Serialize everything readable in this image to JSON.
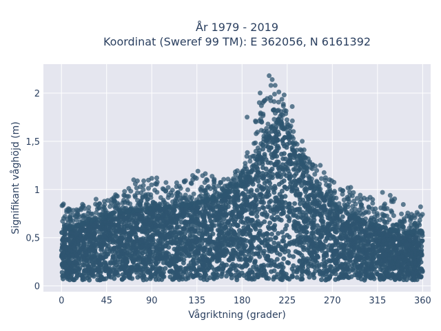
{
  "chart_data": {
    "type": "scatter",
    "title": "År 1979 - 2019",
    "subtitle": "Koordinat (Sweref 99 TM): E 362056, N 6161392",
    "xlabel": "Vågriktning (grader)",
    "ylabel": "Signifikant våghöjd (m)",
    "xlim": [
      -18,
      368
    ],
    "ylim": [
      -0.06,
      2.3
    ],
    "x_ticks": [
      0,
      45,
      90,
      135,
      180,
      225,
      270,
      315,
      360
    ],
    "x_tick_labels": [
      "0",
      "45",
      "90",
      "135",
      "180",
      "225",
      "270",
      "315",
      "360"
    ],
    "y_ticks": [
      0,
      0.5,
      1,
      1.5,
      2
    ],
    "y_tick_labels": [
      "0",
      "0,5",
      "1",
      "1,5",
      "2"
    ],
    "grid": true,
    "marker_color": "#2e5570",
    "background_color": "#e5e6ef",
    "series": [
      {
        "description": "dense cloud of hourly observations, significant wave height vs wave direction",
        "envelope": {
          "direction": [
            0,
            15,
            30,
            45,
            60,
            75,
            90,
            105,
            120,
            135,
            150,
            165,
            180,
            190,
            200,
            210,
            215,
            225,
            235,
            245,
            255,
            270,
            285,
            300,
            315,
            330,
            345,
            360
          ],
          "height_dense_upper": [
            0.55,
            0.62,
            0.68,
            0.72,
            0.76,
            0.78,
            0.8,
            0.82,
            0.83,
            0.85,
            0.9,
            0.95,
            1.05,
            1.2,
            1.45,
            1.65,
            1.7,
            1.6,
            1.4,
            1.15,
            1.0,
            0.85,
            0.75,
            0.68,
            0.62,
            0.58,
            0.55,
            0.55
          ],
          "height_outlier_max": [
            0.85,
            0.82,
            0.9,
            0.92,
            0.98,
            1.1,
            1.12,
            1.08,
            1.1,
            1.2,
            1.15,
            1.1,
            1.25,
            1.65,
            2.05,
            2.18,
            2.1,
            1.85,
            1.6,
            1.35,
            1.25,
            1.1,
            1.05,
            0.95,
            0.9,
            0.97,
            0.8,
            0.82
          ],
          "height_min": 0.06
        },
        "sample_points": [
          {
            "x": 207,
            "y": 2.18
          },
          {
            "x": 210,
            "y": 2.14
          },
          {
            "x": 213,
            "y": 2.08
          },
          {
            "x": 198,
            "y": 2.0
          },
          {
            "x": 222,
            "y": 1.98
          },
          {
            "x": 230,
            "y": 1.86
          },
          {
            "x": 185,
            "y": 1.75
          },
          {
            "x": 240,
            "y": 1.5
          },
          {
            "x": 258,
            "y": 1.25
          },
          {
            "x": 136,
            "y": 1.19
          },
          {
            "x": 95,
            "y": 1.12
          },
          {
            "x": 72,
            "y": 1.1
          },
          {
            "x": 320,
            "y": 0.97
          },
          {
            "x": 2,
            "y": 0.85
          },
          {
            "x": 358,
            "y": 0.82
          }
        ]
      }
    ]
  }
}
